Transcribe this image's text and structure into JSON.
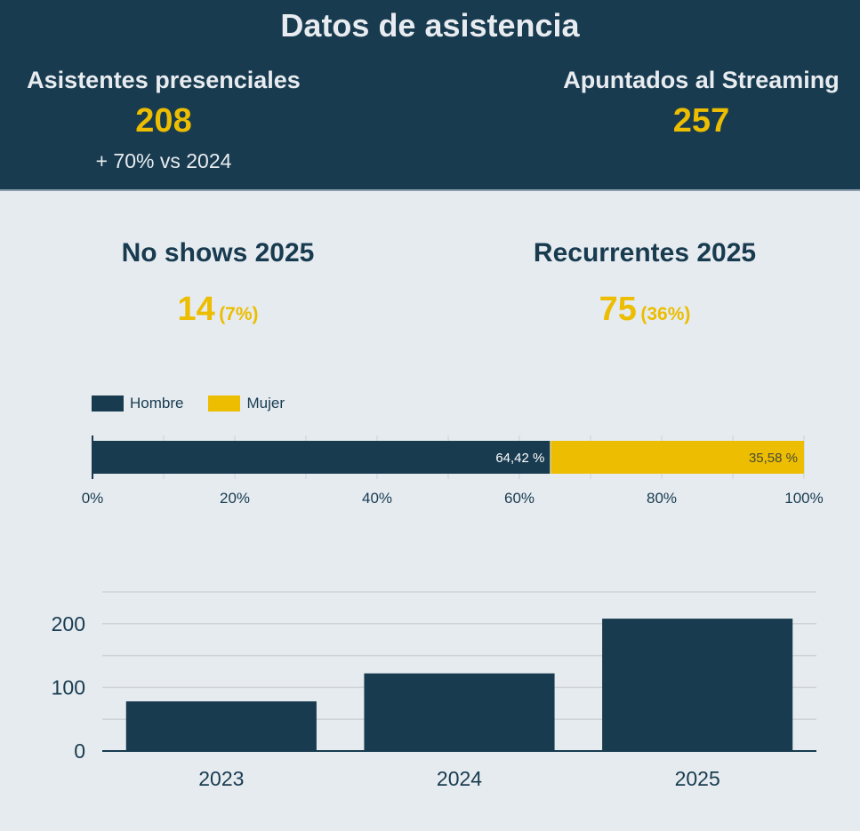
{
  "header": {
    "title": "Datos de asistencia",
    "in_person": {
      "label": "Asistentes presenciales",
      "value": "208",
      "note": "+ 70% vs 2024"
    },
    "streaming": {
      "label": "Apuntados al Streaming",
      "value": "257"
    }
  },
  "stats": {
    "no_shows": {
      "label": "No shows 2025",
      "value": "14",
      "pct": "(7%)"
    },
    "recurrent": {
      "label": "Recurrentes 2025",
      "value": "75",
      "pct": "(36%)"
    }
  },
  "colors": {
    "navy": "#183b4f",
    "yellow": "#ecbd00",
    "background": "#e6ebf0"
  },
  "chart_data": [
    {
      "type": "bar",
      "orientation": "horizontal-stacked-100",
      "title": "",
      "legend": [
        "Hombre",
        "Mujer"
      ],
      "legend_position": "top-left",
      "series": [
        {
          "name": "Hombre",
          "values": [
            64.42
          ],
          "label": "64,42 %",
          "color": "#183b4f"
        },
        {
          "name": "Mujer",
          "values": [
            35.58
          ],
          "label": "35,58 %",
          "color": "#ecbd00"
        }
      ],
      "xlim": [
        0,
        100
      ],
      "xticks": [
        "0%",
        "20%",
        "40%",
        "60%",
        "80%",
        "100%"
      ],
      "grid": true
    },
    {
      "type": "bar",
      "title": "",
      "categories": [
        "2023",
        "2024",
        "2025"
      ],
      "values": [
        78,
        122,
        208
      ],
      "ylim": [
        0,
        250
      ],
      "yticks": [
        "0",
        "100",
        "200"
      ],
      "xlabel": "",
      "ylabel": "",
      "grid": true
    }
  ]
}
